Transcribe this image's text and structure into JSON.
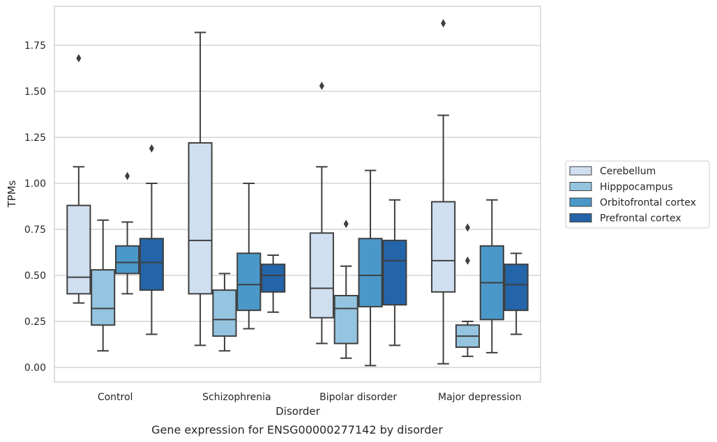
{
  "chart_data": {
    "type": "boxplot",
    "caption": "Gene expression for ENSG00000277142 by disorder",
    "xlabel": "Disorder",
    "ylabel": "TPMs",
    "ylim": [
      -0.08,
      1.97
    ],
    "yticks": [
      "0.00",
      "0.25",
      "0.50",
      "0.75",
      "1.00",
      "1.25",
      "1.50",
      "1.75"
    ],
    "grid": "horizontal",
    "legend_position": "right",
    "categories": [
      "Control",
      "Schizophrenia",
      "Bipolar disorder",
      "Major depression"
    ],
    "series": [
      {
        "name": "Cerebellum",
        "color": "#d0dff0",
        "boxes": [
          {
            "whislo": 0.35,
            "q1": 0.4,
            "med": 0.49,
            "q3": 0.88,
            "whishi": 1.09,
            "fliers": [
              1.68
            ]
          },
          {
            "whislo": 0.12,
            "q1": 0.4,
            "med": 0.69,
            "q3": 1.22,
            "whishi": 1.82,
            "fliers": []
          },
          {
            "whislo": 0.13,
            "q1": 0.27,
            "med": 0.43,
            "q3": 0.73,
            "whishi": 1.09,
            "fliers": [
              1.53
            ]
          },
          {
            "whislo": 0.02,
            "q1": 0.41,
            "med": 0.58,
            "q3": 0.9,
            "whishi": 1.37,
            "fliers": [
              1.87
            ]
          }
        ]
      },
      {
        "name": "Hipppocampus",
        "color": "#94c4df",
        "boxes": [
          {
            "whislo": 0.09,
            "q1": 0.23,
            "med": 0.32,
            "q3": 0.53,
            "whishi": 0.8,
            "fliers": []
          },
          {
            "whislo": 0.09,
            "q1": 0.17,
            "med": 0.26,
            "q3": 0.42,
            "whishi": 0.51,
            "fliers": []
          },
          {
            "whislo": 0.05,
            "q1": 0.13,
            "med": 0.32,
            "q3": 0.39,
            "whishi": 0.55,
            "fliers": [
              0.78
            ]
          },
          {
            "whislo": 0.06,
            "q1": 0.11,
            "med": 0.17,
            "q3": 0.23,
            "whishi": 0.25,
            "fliers": []
          }
        ]
      },
      {
        "name": "Orbitofrontal cortex",
        "color": "#4a98c9",
        "boxes": [
          {
            "whislo": 0.4,
            "q1": 0.51,
            "med": 0.57,
            "q3": 0.66,
            "whishi": 0.79,
            "fliers": [
              1.04
            ]
          },
          {
            "whislo": 0.21,
            "q1": 0.31,
            "med": 0.45,
            "q3": 0.62,
            "whishi": 1.0,
            "fliers": []
          },
          {
            "whislo": 0.01,
            "q1": 0.33,
            "med": 0.5,
            "q3": 0.7,
            "whishi": 1.07,
            "fliers": []
          },
          {
            "whislo": 0.08,
            "q1": 0.26,
            "med": 0.46,
            "q3": 0.66,
            "whishi": 0.91,
            "fliers": []
          }
        ]
      },
      {
        "name": "Prefrontal cortex",
        "color": "#2464a8",
        "boxes": [
          {
            "whislo": 0.18,
            "q1": 0.42,
            "med": 0.57,
            "q3": 0.7,
            "whishi": 1.0,
            "fliers": [
              1.19
            ]
          },
          {
            "whislo": 0.3,
            "q1": 0.41,
            "med": 0.5,
            "q3": 0.56,
            "whishi": 0.61,
            "fliers": []
          },
          {
            "whislo": 0.12,
            "q1": 0.34,
            "med": 0.58,
            "q3": 0.69,
            "whishi": 0.91,
            "fliers": []
          },
          {
            "whislo": 0.18,
            "q1": 0.31,
            "med": 0.45,
            "q3": 0.56,
            "whishi": 0.62,
            "fliers": []
          }
        ]
      }
    ],
    "extra_fliers": [
      {
        "category": "Major depression",
        "series": "Hipppocampus",
        "values": [
          0.76,
          0.58
        ]
      }
    ]
  }
}
